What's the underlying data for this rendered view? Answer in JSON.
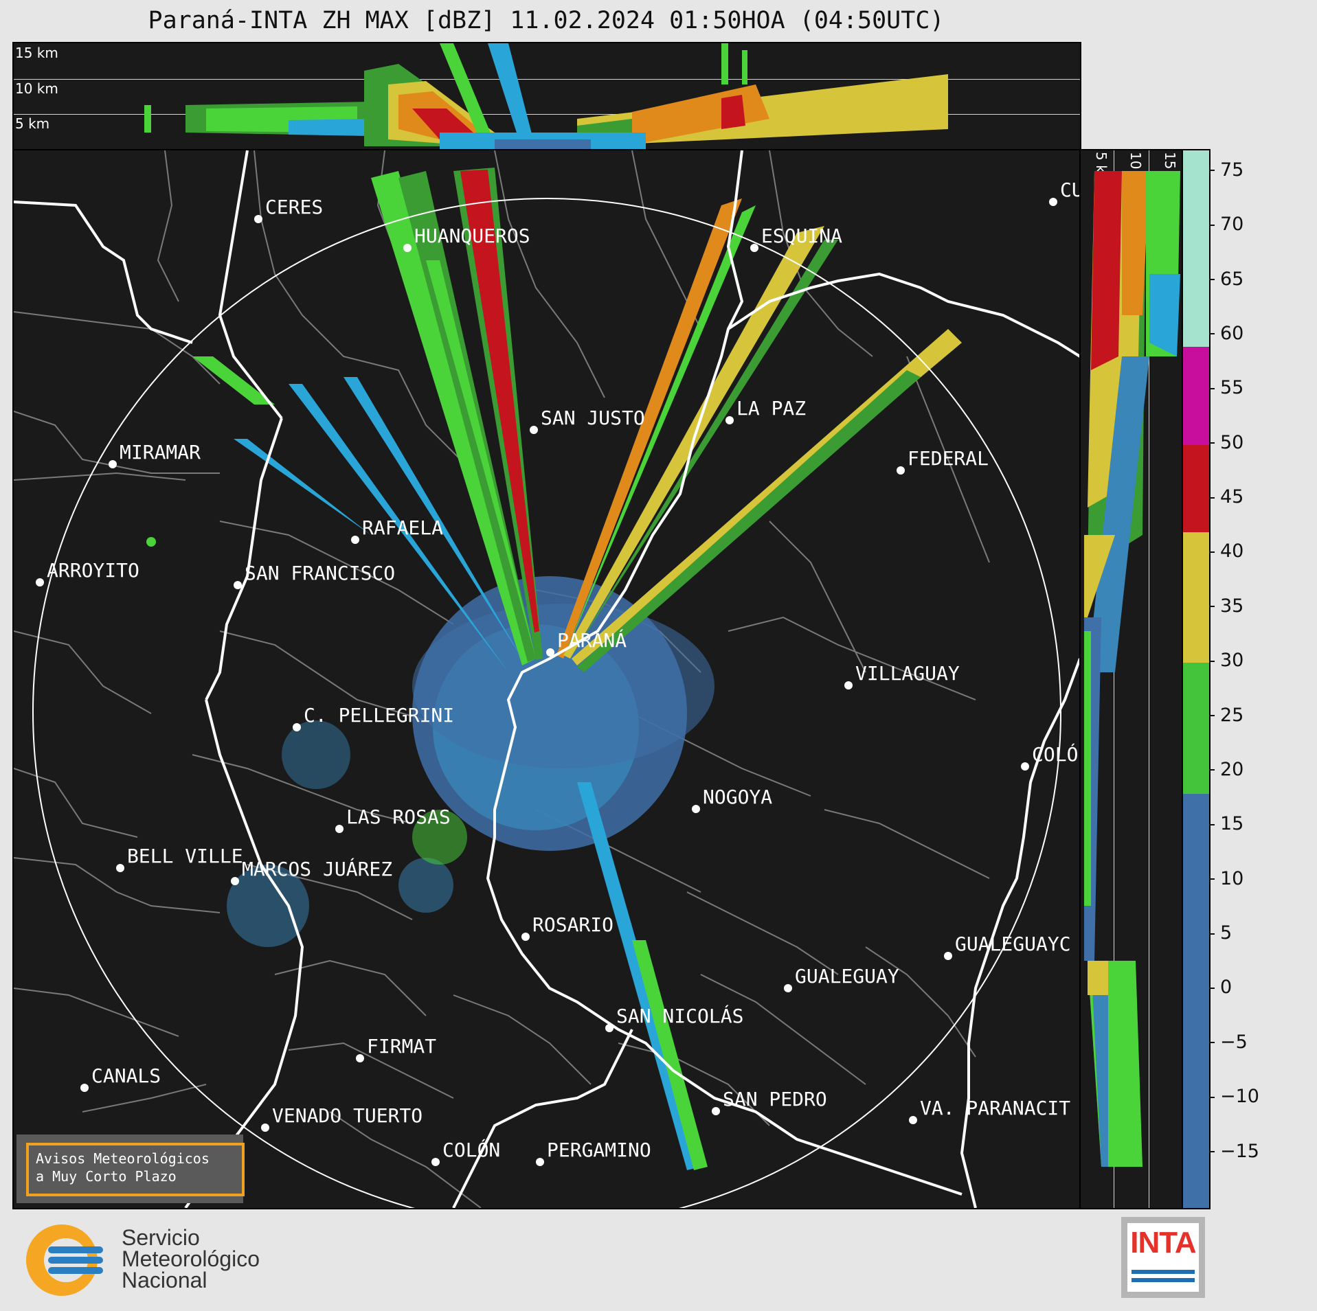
{
  "title": "Paraná-INTA ZH MAX [dBZ] 11.02.2024 01:50HOA (04:50UTC)",
  "altitude_labels": {
    "km15": "15 km",
    "km10": "10 km",
    "km5": "5 km"
  },
  "cities": [
    {
      "name": "CERES"
    },
    {
      "name": "HUANQUEROS"
    },
    {
      "name": "ESQUINA"
    },
    {
      "name": "CU"
    },
    {
      "name": "SAN JUSTO"
    },
    {
      "name": "LA PAZ"
    },
    {
      "name": "MIRAMAR"
    },
    {
      "name": "FEDERAL"
    },
    {
      "name": "RAFAELA"
    },
    {
      "name": "ARROYITO"
    },
    {
      "name": "SAN FRANCISCO"
    },
    {
      "name": "PARANÁ"
    },
    {
      "name": "VILLAGUAY"
    },
    {
      "name": "C. PELLEGRINI"
    },
    {
      "name": "COLÓ"
    },
    {
      "name": "NOGOYA"
    },
    {
      "name": "LAS ROSAS"
    },
    {
      "name": "BELL VILLE"
    },
    {
      "name": "MARCOS JUÁREZ"
    },
    {
      "name": "ROSARIO"
    },
    {
      "name": "GUALEGUAYC"
    },
    {
      "name": "GUALEGUAY"
    },
    {
      "name": "SAN NICOLÁS"
    },
    {
      "name": "FIRMAT"
    },
    {
      "name": "CANALS"
    },
    {
      "name": "SAN PEDRO"
    },
    {
      "name": "VENADO TUERTO"
    },
    {
      "name": "VA. PARANACIT"
    },
    {
      "name": "COLÓN"
    },
    {
      "name": "PERGAMINO"
    }
  ],
  "colorbar": {
    "unit": "dBZ",
    "range": [
      -20,
      77
    ],
    "ticks": [
      "75",
      "70",
      "65",
      "60",
      "55",
      "50",
      "45",
      "40",
      "35",
      "30",
      "25",
      "20",
      "15",
      "10",
      "5",
      "0",
      "−5",
      "−10",
      "−15"
    ],
    "ranges": [
      {
        "from": -20,
        "to": 18,
        "color": "#3f70a8"
      },
      {
        "from": 18,
        "to": 30,
        "color": "#44c43a"
      },
      {
        "from": 30,
        "to": 42,
        "color": "#d6c43a"
      },
      {
        "from": 42,
        "to": 50,
        "color": "#c4141e"
      },
      {
        "from": 50,
        "to": 59,
        "color": "#c80e9c"
      },
      {
        "from": 59,
        "to": 77,
        "color": "#a6e3cf"
      }
    ]
  },
  "notice": {
    "line1": "Avisos Meteorológicos",
    "line2": "a Muy Corto Plazo"
  },
  "smn": {
    "line1": "Servicio",
    "line2": "Meteorológico",
    "line3": "Nacional"
  },
  "inta": {
    "label": "INTA"
  },
  "colors": {
    "background": "#1a1a1a",
    "outer": "#e6e6e6",
    "smn_orange": "#f5a623",
    "smn_blue": "#2a7fc3",
    "inta_red": "#e4322b"
  }
}
